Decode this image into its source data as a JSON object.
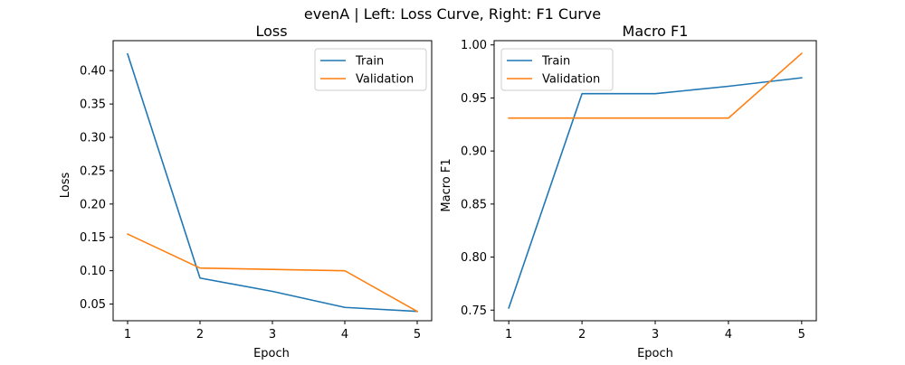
{
  "figure": {
    "suptitle": "evenA | Left: Loss Curve, Right: F1 Curve"
  },
  "colors": {
    "train": "#1f77b4",
    "validation": "#ff7f0e",
    "axes": "#000000",
    "legend_border": "#cccccc",
    "background": "#ffffff"
  },
  "chart_data": [
    {
      "type": "line",
      "title": "Loss",
      "xlabel": "Epoch",
      "ylabel": "Loss",
      "x": [
        1,
        2,
        3,
        4,
        5
      ],
      "xlim": [
        0.8,
        5.2
      ],
      "ylim": [
        0.025,
        0.445
      ],
      "xticks": [
        1,
        2,
        3,
        4,
        5
      ],
      "yticks": [
        0.05,
        0.1,
        0.15,
        0.2,
        0.25,
        0.3,
        0.35,
        0.4
      ],
      "ytick_labels": [
        "0.05",
        "0.10",
        "0.15",
        "0.20",
        "0.25",
        "0.30",
        "0.35",
        "0.40"
      ],
      "grid": false,
      "legend_position": "upper right",
      "series": [
        {
          "name": "Train",
          "color_key": "train",
          "values": [
            0.425,
            0.089,
            0.069,
            0.045,
            0.039
          ]
        },
        {
          "name": "Validation",
          "color_key": "validation",
          "values": [
            0.155,
            0.104,
            0.102,
            0.1,
            0.039
          ]
        }
      ]
    },
    {
      "type": "line",
      "title": "Macro F1",
      "xlabel": "Epoch",
      "ylabel": "Macro F1",
      "x": [
        1,
        2,
        3,
        4,
        5
      ],
      "xlim": [
        0.8,
        5.2
      ],
      "ylim": [
        0.74,
        1.004
      ],
      "xticks": [
        1,
        2,
        3,
        4,
        5
      ],
      "yticks": [
        0.75,
        0.8,
        0.85,
        0.9,
        0.95,
        1.0
      ],
      "ytick_labels": [
        "0.75",
        "0.80",
        "0.85",
        "0.90",
        "0.95",
        "1.00"
      ],
      "grid": false,
      "legend_position": "upper left",
      "series": [
        {
          "name": "Train",
          "color_key": "train",
          "values": [
            0.752,
            0.954,
            0.954,
            0.961,
            0.969
          ]
        },
        {
          "name": "Validation",
          "color_key": "validation",
          "values": [
            0.931,
            0.931,
            0.931,
            0.931,
            0.992
          ]
        }
      ]
    }
  ]
}
